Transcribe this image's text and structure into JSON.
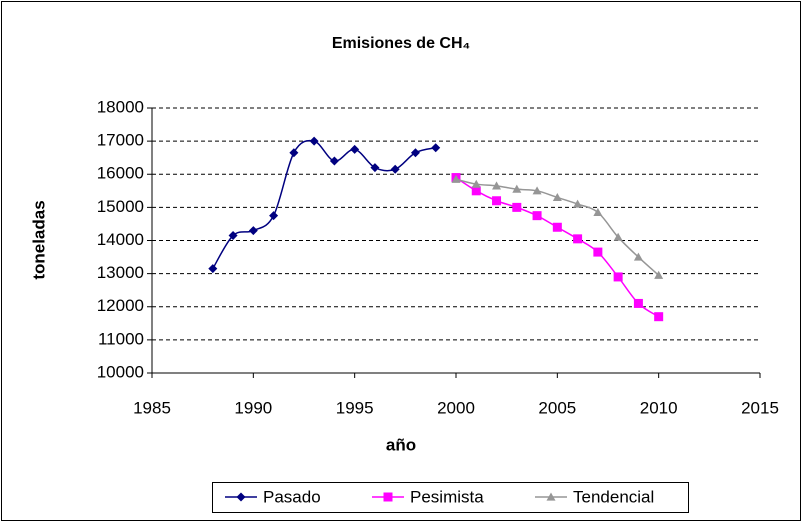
{
  "chart_data": {
    "type": "line",
    "title": "Emisiones de CH₄",
    "xlabel": "año",
    "ylabel": "toneladas",
    "xlim": [
      1985,
      2015
    ],
    "xticks": [
      1985,
      1990,
      1995,
      2000,
      2005,
      2010,
      2015
    ],
    "ylim": [
      10000,
      18000
    ],
    "yticks": [
      10000,
      11000,
      12000,
      13000,
      14000,
      15000,
      16000,
      17000,
      18000
    ],
    "grid": true,
    "legend": "bottom",
    "smooth": true,
    "series": [
      {
        "name": "Pasado",
        "color": "#000080",
        "marker": "diamond",
        "x": [
          1988,
          1989,
          1990,
          1991,
          1992,
          1993,
          1994,
          1995,
          1996,
          1997,
          1998,
          1999
        ],
        "values": [
          13150,
          14150,
          14300,
          14750,
          16650,
          17000,
          16400,
          16750,
          16200,
          16150,
          16650,
          16800
        ]
      },
      {
        "name": "Pesimista",
        "color": "#ff00ff",
        "marker": "square",
        "x": [
          2000,
          2001,
          2002,
          2003,
          2004,
          2005,
          2006,
          2007,
          2008,
          2009,
          2010
        ],
        "values": [
          15900,
          15500,
          15200,
          15000,
          14750,
          14400,
          14050,
          13650,
          12900,
          12100,
          11700
        ]
      },
      {
        "name": "Tendencial",
        "color": "#969696",
        "marker": "triangle",
        "x": [
          2000,
          2001,
          2002,
          2003,
          2004,
          2005,
          2006,
          2007,
          2008,
          2009,
          2010
        ],
        "values": [
          15850,
          15700,
          15650,
          15550,
          15500,
          15300,
          15100,
          14850,
          14100,
          13500,
          12950
        ]
      }
    ]
  }
}
